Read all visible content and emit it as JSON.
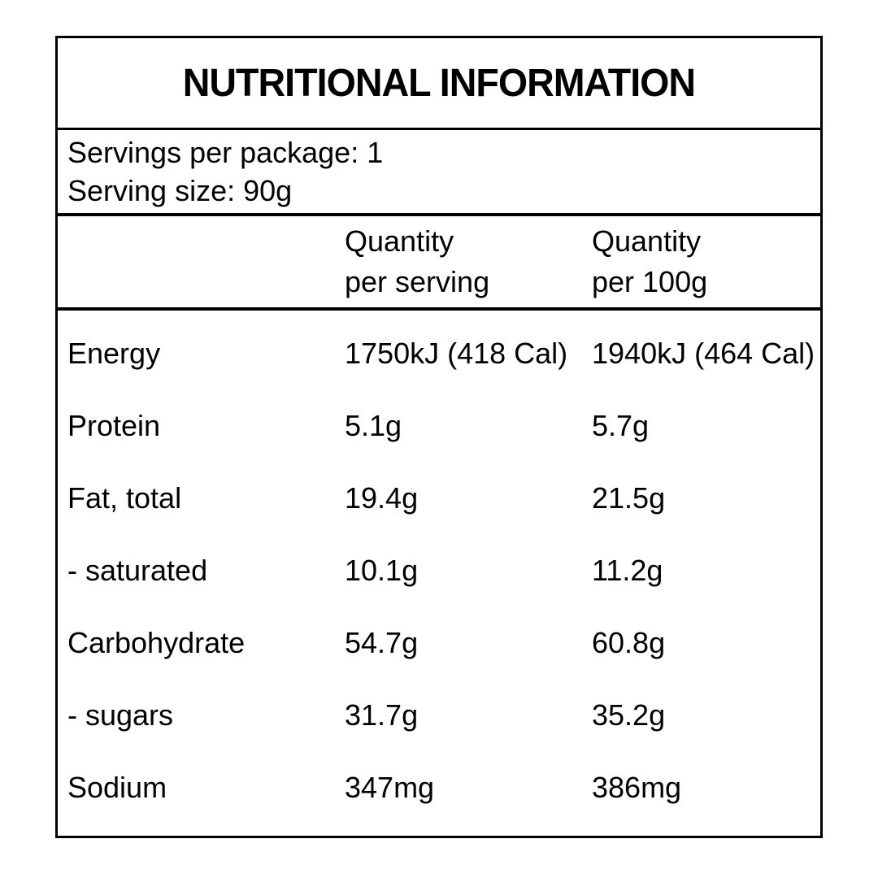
{
  "label": {
    "colors": {
      "background": "#ffffff",
      "border": "#000000",
      "text": "#000000"
    },
    "title": "NUTRITIONAL INFORMATION",
    "serving_info": {
      "servings_per_package": "Servings per package: 1",
      "serving_size": "Serving size: 90g"
    },
    "header": {
      "per_serving": {
        "line1": "Quantity",
        "line2": "per serving"
      },
      "per_100g": {
        "line1": "Quantity",
        "line2": "per 100g"
      }
    },
    "rows": [
      {
        "nutrient": "Energy",
        "per_serving": "1750kJ (418 Cal)",
        "per_100g": "1940kJ (464 Cal)"
      },
      {
        "nutrient": "Protein",
        "per_serving": "5.1g",
        "per_100g": "5.7g"
      },
      {
        "nutrient": "Fat, total",
        "per_serving": "19.4g",
        "per_100g": "21.5g"
      },
      {
        "nutrient": "- saturated",
        "per_serving": "10.1g",
        "per_100g": "11.2g"
      },
      {
        "nutrient": "Carbohydrate",
        "per_serving": "54.7g",
        "per_100g": "60.8g"
      },
      {
        "nutrient": "- sugars",
        "per_serving": "31.7g",
        "per_100g": "35.2g"
      },
      {
        "nutrient": "Sodium",
        "per_serving": "347mg",
        "per_100g": "386mg"
      }
    ]
  }
}
